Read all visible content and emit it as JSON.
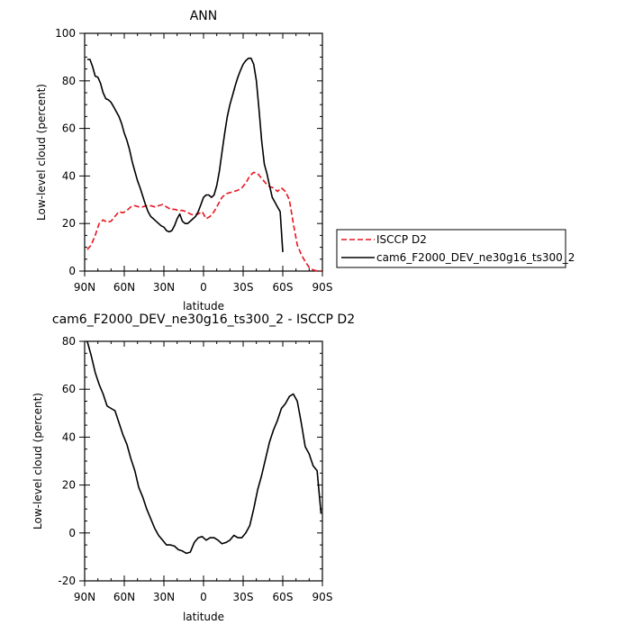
{
  "chart_data": [
    {
      "type": "line",
      "title": "ANN",
      "xlabel": "latitude",
      "ylabel": "Low-level cloud (percent)",
      "xlim": [
        90,
        -90
      ],
      "ylim": [
        0,
        100
      ],
      "xticks": [
        {
          "v": 90,
          "label": "90N"
        },
        {
          "v": 60,
          "label": "60N"
        },
        {
          "v": 30,
          "label": "30N"
        },
        {
          "v": 0,
          "label": "0"
        },
        {
          "v": -30,
          "label": "30S"
        },
        {
          "v": -60,
          "label": "60S"
        },
        {
          "v": -90,
          "label": "90S"
        }
      ],
      "yticks": [
        {
          "v": 0,
          "label": "0"
        },
        {
          "v": 20,
          "label": "20"
        },
        {
          "v": 40,
          "label": "40"
        },
        {
          "v": 60,
          "label": "60"
        },
        {
          "v": 80,
          "label": "80"
        },
        {
          "v": 100,
          "label": "100"
        }
      ],
      "legend": {
        "placement": "right"
      },
      "series": [
        {
          "name": "ISCCP D2",
          "color": "#e8141e",
          "dash": "dashed",
          "points": [
            [
              88,
              9
            ],
            [
              85,
              11
            ],
            [
              82,
              15
            ],
            [
              79,
              20
            ],
            [
              76,
              21.5
            ],
            [
              73,
              20.5
            ],
            [
              70,
              21
            ],
            [
              67,
              23
            ],
            [
              64,
              25
            ],
            [
              61,
              24.5
            ],
            [
              58,
              25.5
            ],
            [
              55,
              27
            ],
            [
              52,
              27.5
            ],
            [
              49,
              27
            ],
            [
              46,
              27
            ],
            [
              43,
              27.5
            ],
            [
              40,
              27.5
            ],
            [
              37,
              27
            ],
            [
              34,
              27.5
            ],
            [
              31,
              28
            ],
            [
              28,
              27
            ],
            [
              25,
              26
            ],
            [
              22,
              26
            ],
            [
              19,
              25.5
            ],
            [
              16,
              25.5
            ],
            [
              13,
              25
            ],
            [
              10,
              24
            ],
            [
              7,
              23.5
            ],
            [
              4,
              24
            ],
            [
              1,
              25
            ],
            [
              -2,
              22
            ],
            [
              -5,
              23
            ],
            [
              -8,
              25
            ],
            [
              -11,
              28
            ],
            [
              -14,
              31
            ],
            [
              -17,
              32.5
            ],
            [
              -20,
              33
            ],
            [
              -23,
              33.5
            ],
            [
              -26,
              34
            ],
            [
              -29,
              35
            ],
            [
              -32,
              37
            ],
            [
              -35,
              40
            ],
            [
              -38,
              41.5
            ],
            [
              -41,
              41
            ],
            [
              -44,
              39
            ],
            [
              -47,
              37
            ],
            [
              -50,
              35.5
            ],
            [
              -53,
              35
            ],
            [
              -56,
              33.5
            ],
            [
              -59,
              35
            ],
            [
              -62,
              33.5
            ],
            [
              -65,
              30
            ],
            [
              -68,
              20
            ],
            [
              -71,
              11
            ],
            [
              -74,
              7
            ],
            [
              -77,
              4
            ],
            [
              -80,
              1.5
            ],
            [
              -83,
              0.5
            ],
            [
              -86,
              0
            ],
            [
              -89,
              0
            ]
          ]
        },
        {
          "name": "cam6_F2000_DEV_ne30g16_ts300_2",
          "color": "#000000",
          "dash": "solid",
          "points": [
            [
              88,
              89
            ],
            [
              86,
              89
            ],
            [
              84,
              86
            ],
            [
              82,
              82
            ],
            [
              80,
              81.5
            ],
            [
              78,
              79
            ],
            [
              76,
              75
            ],
            [
              74,
              72.5
            ],
            [
              72,
              72
            ],
            [
              70,
              71
            ],
            [
              68,
              69
            ],
            [
              66,
              67
            ],
            [
              64,
              65
            ],
            [
              62,
              62
            ],
            [
              60,
              58
            ],
            [
              58,
              55
            ],
            [
              56,
              51
            ],
            [
              54,
              46
            ],
            [
              52,
              42
            ],
            [
              50,
              38
            ],
            [
              48,
              35
            ],
            [
              46,
              31.5
            ],
            [
              44,
              28
            ],
            [
              42,
              25
            ],
            [
              40,
              23
            ],
            [
              38,
              22
            ],
            [
              36,
              21
            ],
            [
              34,
              20
            ],
            [
              32,
              19
            ],
            [
              30,
              18.5
            ],
            [
              28,
              17
            ],
            [
              26,
              16.5
            ],
            [
              24,
              17
            ],
            [
              22,
              19
            ],
            [
              20,
              22
            ],
            [
              18,
              24
            ],
            [
              16,
              21
            ],
            [
              14,
              20
            ],
            [
              12,
              20
            ],
            [
              10,
              21
            ],
            [
              8,
              22
            ],
            [
              6,
              23
            ],
            [
              4,
              25
            ],
            [
              2,
              28
            ],
            [
              0,
              31
            ],
            [
              -2,
              32
            ],
            [
              -4,
              32
            ],
            [
              -6,
              31
            ],
            [
              -8,
              32
            ],
            [
              -10,
              36
            ],
            [
              -12,
              42
            ],
            [
              -14,
              50
            ],
            [
              -16,
              58
            ],
            [
              -18,
              65
            ],
            [
              -20,
              70
            ],
            [
              -22,
              74
            ],
            [
              -24,
              78
            ],
            [
              -26,
              81.5
            ],
            [
              -28,
              84.5
            ],
            [
              -30,
              87
            ],
            [
              -32,
              88.5
            ],
            [
              -34,
              89.5
            ],
            [
              -36,
              89.5
            ],
            [
              -38,
              87
            ],
            [
              -40,
              80
            ],
            [
              -42,
              68
            ],
            [
              -44,
              55
            ],
            [
              -46,
              45
            ],
            [
              -48,
              41
            ],
            [
              -50,
              36
            ],
            [
              -52,
              31
            ],
            [
              -54,
              29
            ],
            [
              -56,
              27
            ],
            [
              -58,
              25
            ],
            [
              -60,
              8
            ]
          ]
        }
      ]
    },
    {
      "type": "line",
      "title": "cam6_F2000_DEV_ne30g16_ts300_2 - ISCCP D2",
      "xlabel": "latitude",
      "ylabel": "Low-level cloud (percent)",
      "xlim": [
        90,
        -90
      ],
      "ylim": [
        -20,
        80
      ],
      "xticks": [
        {
          "v": 90,
          "label": "90N"
        },
        {
          "v": 60,
          "label": "60N"
        },
        {
          "v": 30,
          "label": "30N"
        },
        {
          "v": 0,
          "label": "0"
        },
        {
          "v": -30,
          "label": "30S"
        },
        {
          "v": -60,
          "label": "60S"
        },
        {
          "v": -90,
          "label": "90S"
        }
      ],
      "yticks": [
        {
          "v": -20,
          "label": "-20"
        },
        {
          "v": 0,
          "label": "0"
        },
        {
          "v": 20,
          "label": "20"
        },
        {
          "v": 40,
          "label": "40"
        },
        {
          "v": 60,
          "label": "60"
        },
        {
          "v": 80,
          "label": "80"
        }
      ],
      "series": [
        {
          "color": "#000000",
          "dash": "solid",
          "points": [
            [
              88,
              80
            ],
            [
              85,
              74
            ],
            [
              82,
              67
            ],
            [
              79,
              62
            ],
            [
              76,
              58
            ],
            [
              73,
              53
            ],
            [
              70,
              52
            ],
            [
              67,
              51
            ],
            [
              64,
              46
            ],
            [
              61,
              41
            ],
            [
              58,
              37
            ],
            [
              55,
              31
            ],
            [
              52,
              26
            ],
            [
              49,
              19
            ],
            [
              46,
              15
            ],
            [
              43,
              10
            ],
            [
              40,
              6
            ],
            [
              37,
              2
            ],
            [
              34,
              -1
            ],
            [
              31,
              -3
            ],
            [
              28,
              -5
            ],
            [
              25,
              -5
            ],
            [
              22,
              -5.5
            ],
            [
              19,
              -7
            ],
            [
              16,
              -7.5
            ],
            [
              13,
              -8.5
            ],
            [
              10,
              -8
            ],
            [
              7,
              -4
            ],
            [
              4,
              -2
            ],
            [
              1,
              -1.5
            ],
            [
              -2,
              -3
            ],
            [
              -5,
              -2
            ],
            [
              -8,
              -2
            ],
            [
              -11,
              -3
            ],
            [
              -14,
              -4.5
            ],
            [
              -17,
              -4
            ],
            [
              -20,
              -3
            ],
            [
              -23,
              -1
            ],
            [
              -26,
              -2
            ],
            [
              -29,
              -2
            ],
            [
              -32,
              0
            ],
            [
              -35,
              3
            ],
            [
              -38,
              10
            ],
            [
              -41,
              18
            ],
            [
              -44,
              24
            ],
            [
              -47,
              31
            ],
            [
              -50,
              38
            ],
            [
              -53,
              43
            ],
            [
              -56,
              47
            ],
            [
              -59,
              52
            ],
            [
              -62,
              54
            ],
            [
              -65,
              57
            ],
            [
              -68,
              58
            ],
            [
              -71,
              55
            ],
            [
              -74,
              46
            ],
            [
              -77,
              36
            ],
            [
              -80,
              33
            ],
            [
              -83,
              28
            ],
            [
              -86,
              26
            ],
            [
              -89,
              8
            ]
          ]
        }
      ]
    }
  ]
}
